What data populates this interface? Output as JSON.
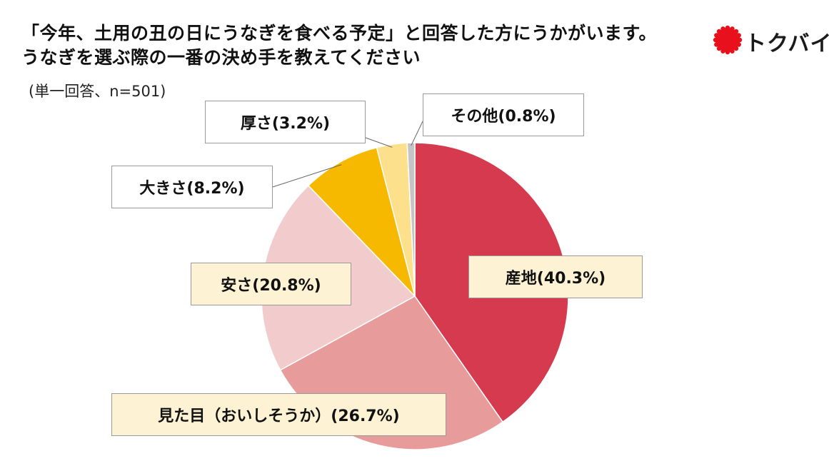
{
  "title_line1": "「今年、土用の丑の日にうなぎを食べる予定」と回答した方にうかがいます。",
  "title_line2": "うなぎを選ぶ際の一番の決め手を教えてください",
  "subtitle": "(単一回答、n=501)",
  "logo_text": "トクバイ",
  "logo_color": "#e8101c",
  "chart_data": {
    "type": "pie",
    "start": "12 o'clock",
    "direction": "clockwise",
    "slices": [
      {
        "label": "産地(40.3%)",
        "value": 40.3,
        "color": "#d63a4f"
      },
      {
        "label": "見た目（おいしそうか）(26.7%)",
        "value": 26.7,
        "color": "#e89b9b"
      },
      {
        "label": "安さ(20.8%)",
        "value": 20.8,
        "color": "#f2cccc"
      },
      {
        "label": "大きさ(8.2%)",
        "value": 8.2,
        "color": "#f7b900"
      },
      {
        "label": "厚さ(3.2%)",
        "value": 3.2,
        "color": "#fce08c"
      },
      {
        "label": "その他(0.8%)",
        "value": 0.8,
        "color": "#c4c4c4"
      }
    ]
  }
}
